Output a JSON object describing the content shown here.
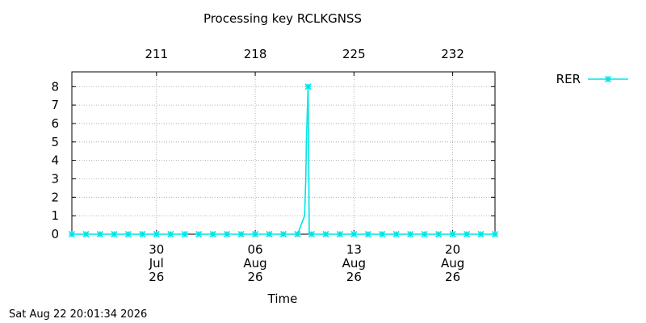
{
  "chart_data": {
    "type": "line",
    "title": "Processing key RCLKGNSS",
    "xlabel": "Time",
    "ylabel": "",
    "ylim": [
      0,
      8.8
    ],
    "y_ticks": [
      "0",
      "1",
      "2",
      "3",
      "4",
      "5",
      "6",
      "7",
      "8"
    ],
    "x_range_days": [
      "2026-07-24",
      "2026-08-23"
    ],
    "x_ticks": [
      {
        "date": "2026-07-30",
        "line1": "30",
        "line2": "Jul",
        "line3": "26"
      },
      {
        "date": "2026-08-06",
        "line1": "06",
        "line2": "Aug",
        "line3": "26"
      },
      {
        "date": "2026-08-13",
        "line1": "13",
        "line2": "Aug",
        "line3": "26"
      },
      {
        "date": "2026-08-20",
        "line1": "20",
        "line2": "Aug",
        "line3": "26"
      }
    ],
    "x2_ticks": [
      {
        "date": "2026-07-30",
        "label": "211"
      },
      {
        "date": "2026-08-06",
        "label": "218"
      },
      {
        "date": "2026-08-13",
        "label": "225"
      },
      {
        "date": "2026-08-20",
        "label": "232"
      }
    ],
    "grid": true,
    "legend_position": "top-right-outside",
    "series": [
      {
        "name": "RER",
        "color": "#00e5e5",
        "marker": "x-star",
        "segments": [
          [
            [
              "2026-07-24",
              0
            ],
            [
              "2026-07-25",
              0
            ],
            [
              "2026-07-26",
              0
            ],
            [
              "2026-07-27",
              0
            ],
            [
              "2026-07-28",
              0
            ],
            [
              "2026-07-29",
              0
            ],
            [
              "2026-07-30",
              0
            ],
            [
              "2026-07-31",
              0
            ],
            [
              "2026-08-01",
              0
            ]
          ],
          [
            [
              "2026-08-02",
              0
            ],
            [
              "2026-08-03",
              0
            ],
            [
              "2026-08-04",
              0
            ],
            [
              "2026-08-05",
              0
            ],
            [
              "2026-08-06",
              0
            ],
            [
              "2026-08-07",
              0
            ],
            [
              "2026-08-08",
              0
            ],
            [
              "2026-08-09",
              0
            ],
            [
              "2026-08-09T12:00",
              1
            ],
            [
              "2026-08-09T14:00",
              3
            ],
            [
              "2026-08-09T15:00",
              5
            ],
            [
              "2026-08-09T17:00",
              7
            ],
            [
              "2026-08-09T18:00",
              8
            ],
            [
              "2026-08-09T20:00",
              0
            ],
            [
              "2026-08-10",
              0
            ],
            [
              "2026-08-11",
              0
            ],
            [
              "2026-08-12",
              0
            ],
            [
              "2026-08-13",
              0
            ],
            [
              "2026-08-14",
              0
            ],
            [
              "2026-08-15",
              0
            ],
            [
              "2026-08-16",
              0
            ],
            [
              "2026-08-17",
              0
            ],
            [
              "2026-08-18",
              0
            ],
            [
              "2026-08-19",
              0
            ],
            [
              "2026-08-20",
              0
            ],
            [
              "2026-08-21",
              0
            ],
            [
              "2026-08-22",
              0
            ],
            [
              "2026-08-23",
              0
            ]
          ]
        ]
      }
    ]
  },
  "footer": "Sat Aug 22 20:01:34 2026"
}
